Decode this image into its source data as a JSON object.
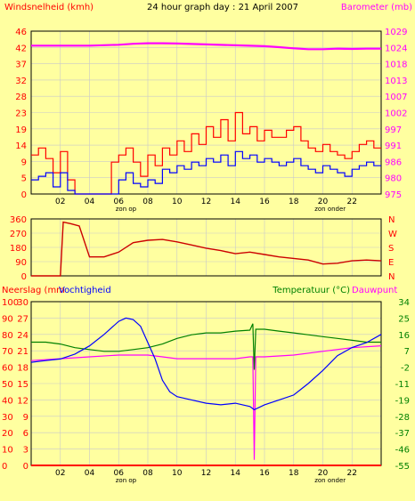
{
  "header": {
    "title": "24 hour graph day : 21 April 2007",
    "left_label": "Windsnelheid (kmh)",
    "right_label": "Barometer (mb)"
  },
  "colors": {
    "background": "#ffffa0",
    "grid": "#c9c9c9",
    "border": "#000000",
    "wind_avg": "#0000ff",
    "wind_gust": "#ff0000",
    "barometer": "#ff00ff",
    "winddir": "#cc0000",
    "rain": "#ff0000",
    "humidity": "#0000ff",
    "temperature": "#008000",
    "dewpoint": "#ff00ff",
    "left_axis_text": "#ff0000",
    "right_axis_text": "#ff00ff",
    "green_axis_text": "#008000"
  },
  "x_axis": {
    "ticks": [
      "02",
      "04",
      "06",
      "08",
      "10",
      "12",
      "14",
      "16",
      "18",
      "20",
      "22"
    ],
    "sunrise_label": "zon op",
    "sunset_label": "zon onder"
  },
  "chart_data": [
    {
      "type": "line",
      "title": "24 hour graph day : 21 April 2007",
      "ylabel": "Windsnelheid (kmh)",
      "y2label": "Barometer (mb)",
      "x_range_hours": [
        0,
        24
      ],
      "ylim": [
        0,
        46
      ],
      "y_ticks": [
        "46",
        "42",
        "37",
        "32",
        "28",
        "23",
        "19",
        "14",
        "9",
        "5",
        "0"
      ],
      "y2lim": [
        975,
        1029
      ],
      "y2_ticks": [
        "1029",
        "1024",
        "1018",
        "1013",
        "1007",
        "1002",
        "997",
        "991",
        "986",
        "980",
        "975"
      ],
      "series": [
        {
          "name": "Barometer",
          "axis": "right",
          "x": [
            0,
            2,
            4,
            6,
            7,
            8,
            9,
            10,
            12,
            14,
            16,
            17,
            18,
            19,
            20,
            21,
            22,
            23,
            24
          ],
          "values": [
            1024.2,
            1024.2,
            1024.2,
            1024.5,
            1024.8,
            1025.0,
            1025.0,
            1024.9,
            1024.6,
            1024.3,
            1024.0,
            1023.7,
            1023.3,
            1023.0,
            1023.0,
            1023.2,
            1023.1,
            1023.2,
            1023.2
          ]
        },
        {
          "name": "Wind average",
          "axis": "left",
          "x": [
            0,
            0.5,
            1,
            1.5,
            2,
            2.5,
            3,
            3.5,
            4,
            4.5,
            5,
            5.5,
            6,
            6.5,
            7,
            7.5,
            8,
            8.5,
            9,
            9.5,
            10,
            10.5,
            11,
            11.5,
            12,
            12.5,
            13,
            13.5,
            14,
            14.5,
            15,
            15.5,
            16,
            16.5,
            17,
            17.5,
            18,
            18.5,
            19,
            19.5,
            20,
            20.5,
            21,
            21.5,
            22,
            22.5,
            23,
            23.5
          ],
          "values": [
            4,
            5,
            6,
            2,
            6,
            1,
            0,
            0,
            0,
            0,
            0,
            0,
            4,
            6,
            3,
            2,
            4,
            3,
            7,
            6,
            8,
            7,
            9,
            8,
            10,
            9,
            11,
            8,
            12,
            10,
            11,
            9,
            10,
            9,
            8,
            9,
            10,
            8,
            7,
            6,
            8,
            7,
            6,
            5,
            7,
            8,
            9,
            8
          ]
        },
        {
          "name": "Wind gust",
          "axis": "left",
          "x": [
            0,
            0.5,
            1,
            1.5,
            2,
            2.5,
            3,
            3.5,
            4,
            4.5,
            5,
            5.5,
            6,
            6.5,
            7,
            7.5,
            8,
            8.5,
            9,
            9.5,
            10,
            10.5,
            11,
            11.5,
            12,
            12.5,
            13,
            13.5,
            14,
            14.5,
            15,
            15.5,
            16,
            16.5,
            17,
            17.5,
            18,
            18.5,
            19,
            19.5,
            20,
            20.5,
            21,
            21.5,
            22,
            22.5,
            23,
            23.5
          ],
          "values": [
            11,
            13,
            10,
            6,
            12,
            4,
            0,
            0,
            0,
            0,
            0,
            9,
            11,
            13,
            9,
            5,
            11,
            8,
            13,
            11,
            15,
            12,
            17,
            14,
            19,
            16,
            21,
            15,
            23,
            17,
            19,
            15,
            18,
            16,
            16,
            18,
            19,
            15,
            13,
            12,
            14,
            12,
            11,
            10,
            12,
            14,
            15,
            13
          ]
        }
      ]
    },
    {
      "type": "line",
      "ylim": [
        0,
        360
      ],
      "y_ticks": [
        "360",
        "270",
        "180",
        "90",
        "0"
      ],
      "y2_ticks": [
        "N",
        "W",
        "S",
        "E",
        "N"
      ],
      "series": [
        {
          "name": "Windrichting",
          "x": [
            0,
            1,
            2,
            2.2,
            2.7,
            3.3,
            4,
            5,
            6,
            7,
            8,
            9,
            10,
            11,
            12,
            13,
            14,
            15,
            16,
            17,
            18,
            19,
            20,
            21,
            22,
            23,
            24
          ],
          "values": [
            0,
            0,
            0,
            340,
            330,
            315,
            120,
            120,
            150,
            210,
            225,
            230,
            215,
            195,
            175,
            160,
            140,
            150,
            135,
            120,
            110,
            100,
            75,
            80,
            95,
            100,
            95
          ]
        }
      ]
    },
    {
      "type": "line",
      "ylabel": "Neerslag (mm",
      "y1label": "Vochtigheid",
      "y2label": "Temperatuur (°C)",
      "y3label": "Dauwpunt",
      "rain_ticks": [
        "30",
        "27",
        "24",
        "21",
        "18",
        "15",
        "12",
        "9",
        "6",
        "3",
        "0"
      ],
      "humidity_ticks": [
        "100",
        "90",
        "80",
        "70",
        "60",
        "50",
        "40",
        "30",
        "20",
        "10",
        "0"
      ],
      "temp_ticks": [
        "34",
        "25",
        "16",
        "7",
        "-2",
        "-11",
        "-19",
        "-28",
        "-37",
        "-46",
        "-55"
      ],
      "humidity_lim": [
        0,
        100
      ],
      "temp_lim": [
        -55,
        34
      ],
      "series": [
        {
          "name": "Neerslag",
          "axis": "rain",
          "x": [
            0,
            24
          ],
          "values": [
            0,
            0
          ]
        },
        {
          "name": "Vochtigheid",
          "axis": "humidity",
          "x": [
            0,
            1,
            2,
            3,
            4,
            5,
            6,
            6.5,
            7,
            7.5,
            8,
            8.5,
            9,
            9.5,
            10,
            11,
            12,
            13,
            14,
            15,
            15.3,
            16,
            17,
            18,
            19,
            20,
            21,
            22,
            23,
            24
          ],
          "values": [
            63,
            64,
            65,
            68,
            73,
            80,
            88,
            90,
            89,
            85,
            75,
            65,
            52,
            45,
            42,
            40,
            38,
            37,
            38,
            36,
            34,
            37,
            40,
            43,
            50,
            58,
            67,
            72,
            75,
            80
          ]
        },
        {
          "name": "Temperatuur",
          "axis": "temp",
          "x": [
            0,
            1,
            2,
            3,
            4,
            5,
            6,
            7,
            8,
            9,
            10,
            11,
            12,
            13,
            14,
            15,
            15.2,
            15.3,
            15.4,
            16,
            17,
            18,
            19,
            20,
            21,
            22,
            23,
            24
          ],
          "values": [
            12,
            12,
            11,
            9,
            8,
            7,
            7,
            8,
            9,
            11,
            14,
            16,
            17,
            17,
            18,
            18.5,
            22,
            -3,
            19,
            19,
            18,
            17,
            16,
            15,
            14,
            13,
            12,
            12
          ]
        },
        {
          "name": "Dauwpunt",
          "axis": "temp",
          "x": [
            0,
            2,
            4,
            6,
            7,
            8,
            9,
            10,
            12,
            14,
            15,
            15.2,
            15.3,
            15.4,
            16,
            18,
            20,
            22,
            24
          ],
          "values": [
            2,
            3,
            4,
            5,
            5,
            5,
            4,
            3,
            3,
            3,
            4,
            4,
            -52,
            4,
            4,
            5,
            7,
            9,
            10
          ]
        }
      ]
    }
  ],
  "panel2": {
    "right_letters": [
      "N",
      "W",
      "S",
      "E",
      "N"
    ]
  },
  "panel3": {
    "left_label_a": "Neerslag (mm",
    "left_label_b": "Vochtigheid",
    "right_label_a": "Temperatuur (°C)",
    "right_label_b": "Dauwpunt"
  }
}
